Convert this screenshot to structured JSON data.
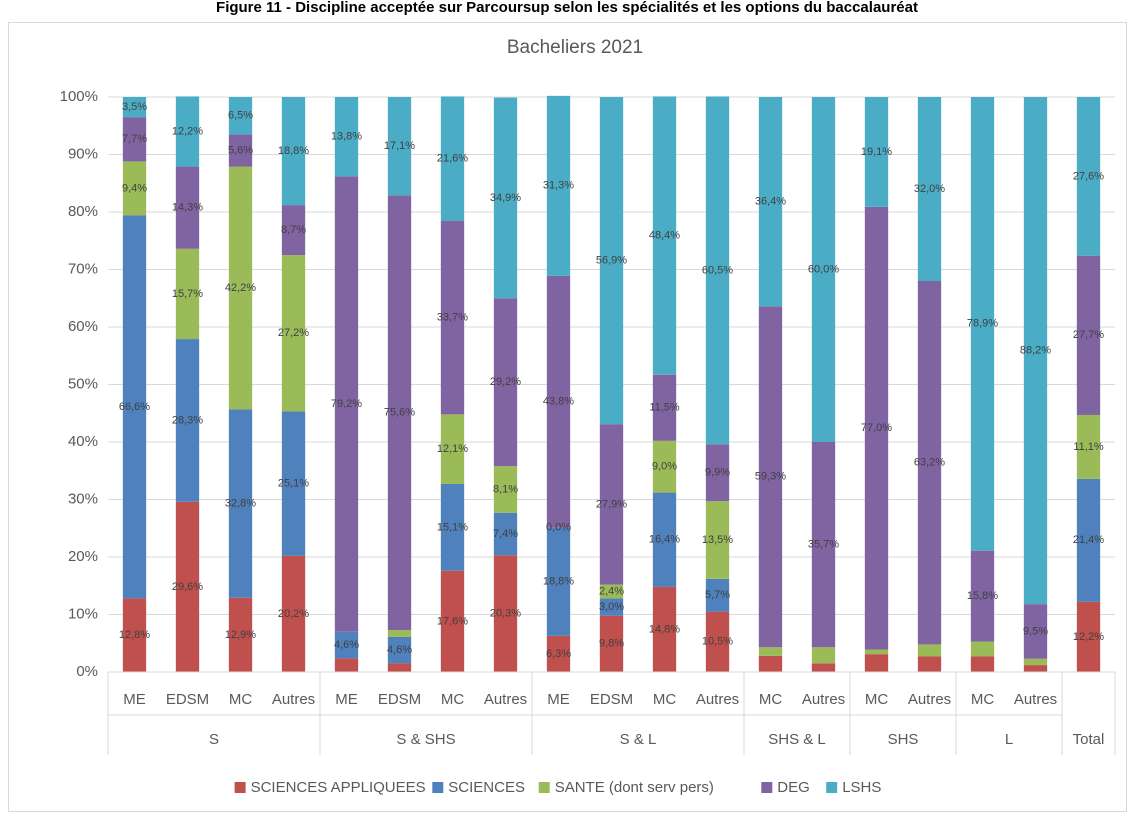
{
  "chart_data": {
    "type": "stacked_bar",
    "header": "Figure 11 - Discipline acceptée sur Parcoursup selon les spécialités et les options du baccalauréat",
    "title": "Bacheliers 2021",
    "groups": [
      {
        "name": "S",
        "categories": [
          "ME",
          "EDSM",
          "MC",
          "Autres"
        ]
      },
      {
        "name": "S & SHS",
        "categories": [
          "ME",
          "EDSM",
          "MC",
          "Autres"
        ]
      },
      {
        "name": "S & L",
        "categories": [
          "ME",
          "EDSM",
          "MC",
          "Autres"
        ]
      },
      {
        "name": "SHS & L",
        "categories": [
          "MC",
          "Autres"
        ]
      },
      {
        "name": "SHS",
        "categories": [
          "MC",
          "Autres"
        ]
      },
      {
        "name": "L",
        "categories": [
          "MC",
          "Autres"
        ]
      },
      {
        "name": "Total",
        "categories": [
          null
        ]
      }
    ],
    "ylim": [
      0,
      100
    ],
    "yticks": [
      {
        "value": 0,
        "label": "0%"
      },
      {
        "value": 10,
        "label": "10%"
      },
      {
        "value": 20,
        "label": "20%"
      },
      {
        "value": 30,
        "label": "30%"
      },
      {
        "value": 40,
        "label": "40%"
      },
      {
        "value": 50,
        "label": "50%"
      },
      {
        "value": 60,
        "label": "60%"
      },
      {
        "value": 70,
        "label": "70%"
      },
      {
        "value": 80,
        "label": "80%"
      },
      {
        "value": 90,
        "label": "90%"
      },
      {
        "value": 100,
        "label": "100%"
      }
    ],
    "grid": true,
    "legend": "bottom",
    "series": [
      {
        "name": "SCIENCES APPLIQUEES",
        "color": "#c0504d",
        "values": [
          12.8,
          29.6,
          12.9,
          20.2,
          2.4,
          1.5,
          17.6,
          20.3,
          6.3,
          9.8,
          14.8,
          10.5,
          2.8,
          1.5,
          3.1,
          2.7,
          2.7,
          1.2,
          12.2
        ],
        "value_labels": [
          "12,8%",
          "29,6%",
          "12,9%",
          "20,2%",
          null,
          null,
          "17,6%",
          "20,3%",
          "6,3%",
          "9,8%",
          "14,8%",
          "10,5%",
          null,
          null,
          null,
          null,
          null,
          null,
          "12,2%"
        ]
      },
      {
        "name": "SCIENCES",
        "color": "#4f81bd",
        "values": [
          66.6,
          28.3,
          32.8,
          25.1,
          4.6,
          4.6,
          15.1,
          7.4,
          18.8,
          3.0,
          16.4,
          5.7,
          0,
          0,
          0,
          0,
          0,
          0,
          21.4
        ],
        "value_labels": [
          "66,6%",
          "28,3%",
          "32,8%",
          "25,1%",
          "4,6%",
          "4,6%",
          "15,1%",
          "7,4%",
          "18,8%",
          "3,0%",
          "16,4%",
          "5,7%",
          null,
          null,
          null,
          null,
          null,
          null,
          "21,4%"
        ]
      },
      {
        "name": "SANTE (dont serv pers)",
        "color": "#9bbb59",
        "values": [
          9.4,
          15.7,
          42.2,
          27.2,
          0,
          1.2,
          12.1,
          8.1,
          0.0,
          2.4,
          9.0,
          13.5,
          1.5,
          2.8,
          0.8,
          2.1,
          2.6,
          1.1,
          11.1
        ],
        "value_labels": [
          "9,4%",
          "15,7%",
          "42,2%",
          "27,2%",
          null,
          null,
          "12,1%",
          "8,1%",
          "0,0%",
          "2,4%",
          "9,0%",
          "13,5%",
          null,
          null,
          null,
          null,
          null,
          null,
          "11,1%"
        ]
      },
      {
        "name": "DEG",
        "color": "#8064a2",
        "values": [
          7.7,
          14.3,
          5.6,
          8.7,
          79.2,
          75.6,
          33.7,
          29.2,
          43.8,
          27.9,
          11.5,
          9.9,
          59.3,
          35.7,
          77.0,
          63.2,
          15.8,
          9.5,
          27.7
        ],
        "value_labels": [
          "7,7%",
          "14,3%",
          "5,6%",
          "8,7%",
          "79,2%",
          "75,6%",
          "33,7%",
          "29,2%",
          "43,8%",
          "27,9%",
          "11,5%",
          "9,9%",
          "59,3%",
          "35,7%",
          "77,0%",
          "63,2%",
          "15,8%",
          "9,5%",
          "27,7%"
        ]
      },
      {
        "name": "LSHS",
        "color": "#4bacc6",
        "values": [
          3.5,
          12.2,
          6.5,
          18.8,
          13.8,
          17.1,
          21.6,
          34.9,
          31.3,
          56.9,
          48.4,
          60.5,
          36.4,
          60.0,
          19.1,
          32.0,
          78.9,
          88.2,
          27.6
        ],
        "value_labels": [
          "3,5%",
          "12,2%",
          "6,5%",
          "18,8%",
          "13,8%",
          "17,1%",
          "21,6%",
          "34,9%",
          "31,3%",
          "56,9%",
          "48,4%",
          "60,5%",
          "36,4%",
          "60,0%",
          "19,1%",
          "32,0%",
          "78,9%",
          "88,2%",
          "27,6%"
        ]
      }
    ]
  }
}
